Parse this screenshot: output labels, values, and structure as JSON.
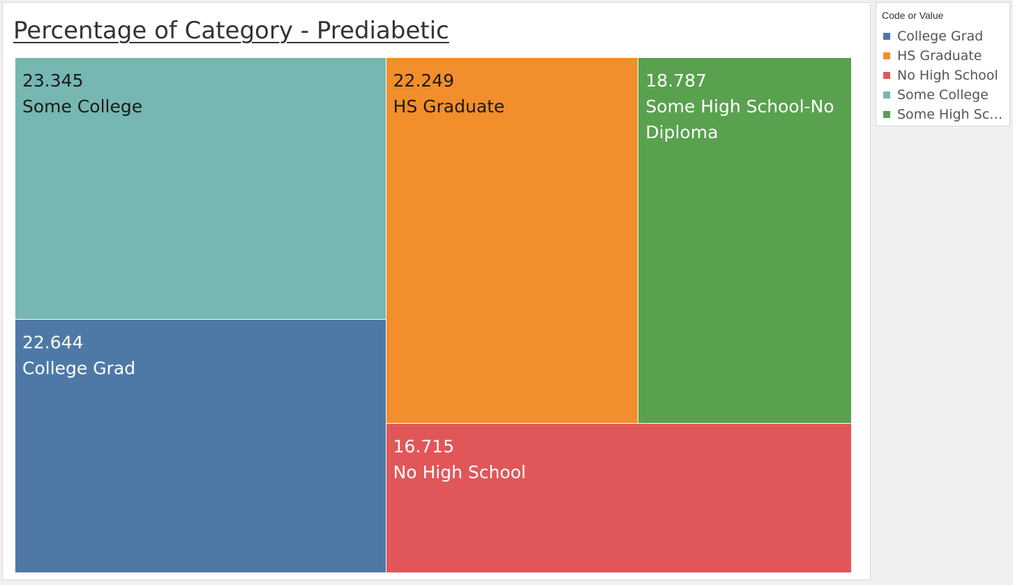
{
  "legend": {
    "title": "Code or Value",
    "items": [
      {
        "label": "College Grad",
        "color": "#4e79a7"
      },
      {
        "label": "HS Graduate",
        "color": "#f28e2b"
      },
      {
        "label": "No High School",
        "color": "#e15759"
      },
      {
        "label": "Some College",
        "color": "#76b7b2"
      },
      {
        "label": "Some High Sch..",
        "color": "#59a14f"
      }
    ]
  },
  "chart_data": {
    "type": "treemap",
    "title": "Percentage of Category - Prediabetic",
    "grid": false,
    "legend_position": "right",
    "items": [
      {
        "label": "Some College",
        "value": 23.345,
        "color": "#76b7b2",
        "text_color": "#1a1a1a"
      },
      {
        "label": "College Grad",
        "value": 22.644,
        "color": "#4e79a7",
        "text_color": "#ffffff"
      },
      {
        "label": "HS Graduate",
        "value": 22.249,
        "color": "#f28e2b",
        "text_color": "#1a1a1a"
      },
      {
        "label": "Some High School-No Diploma",
        "value": 18.787,
        "color": "#59a14f",
        "text_color": "#ffffff"
      },
      {
        "label": "No High School",
        "value": 16.715,
        "color": "#e15759",
        "text_color": "#ffffff"
      }
    ]
  }
}
